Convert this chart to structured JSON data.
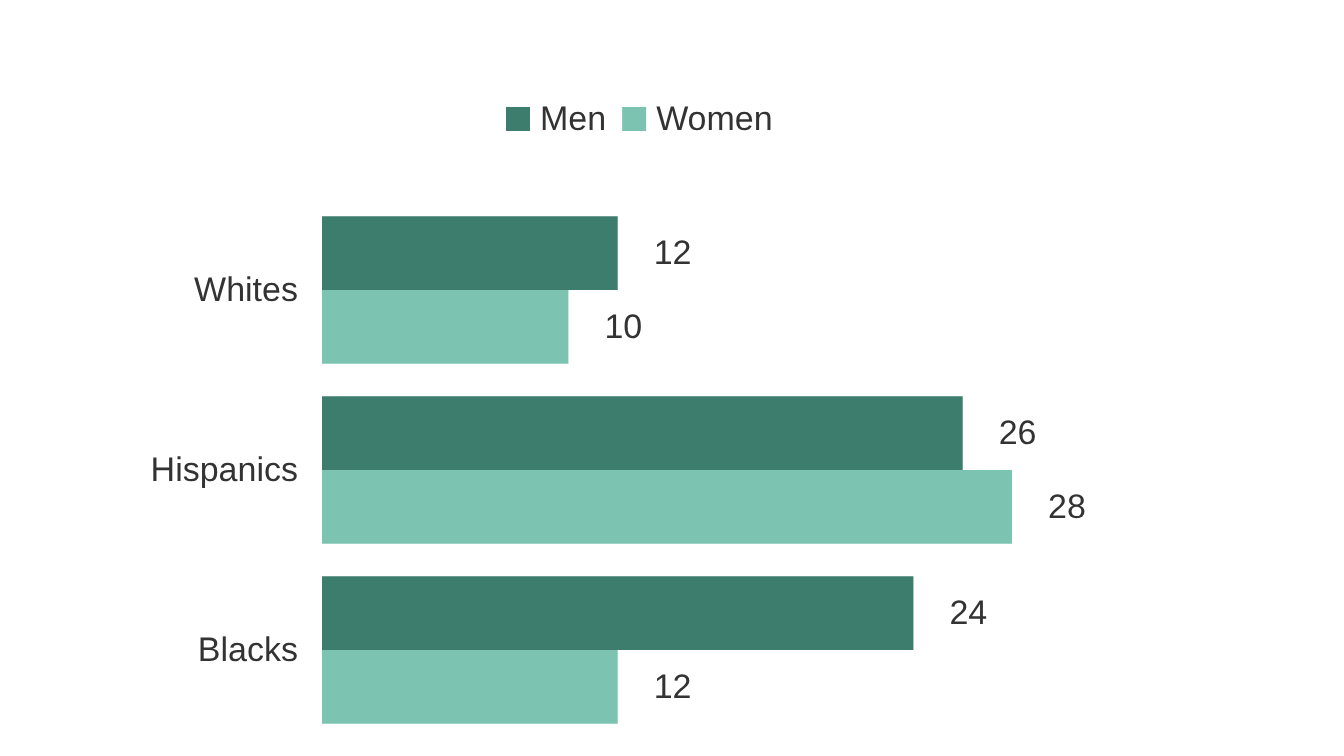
{
  "chart_data": {
    "type": "bar",
    "orientation": "horizontal",
    "categories": [
      "Whites",
      "Hispanics",
      "Blacks"
    ],
    "series": [
      {
        "name": "Men",
        "color": "#3c7d6d",
        "values": [
          12,
          26,
          24
        ]
      },
      {
        "name": "Women",
        "color": "#7cc4b1",
        "values": [
          10,
          28,
          12
        ]
      }
    ],
    "data_labels": true,
    "legend": "top"
  }
}
